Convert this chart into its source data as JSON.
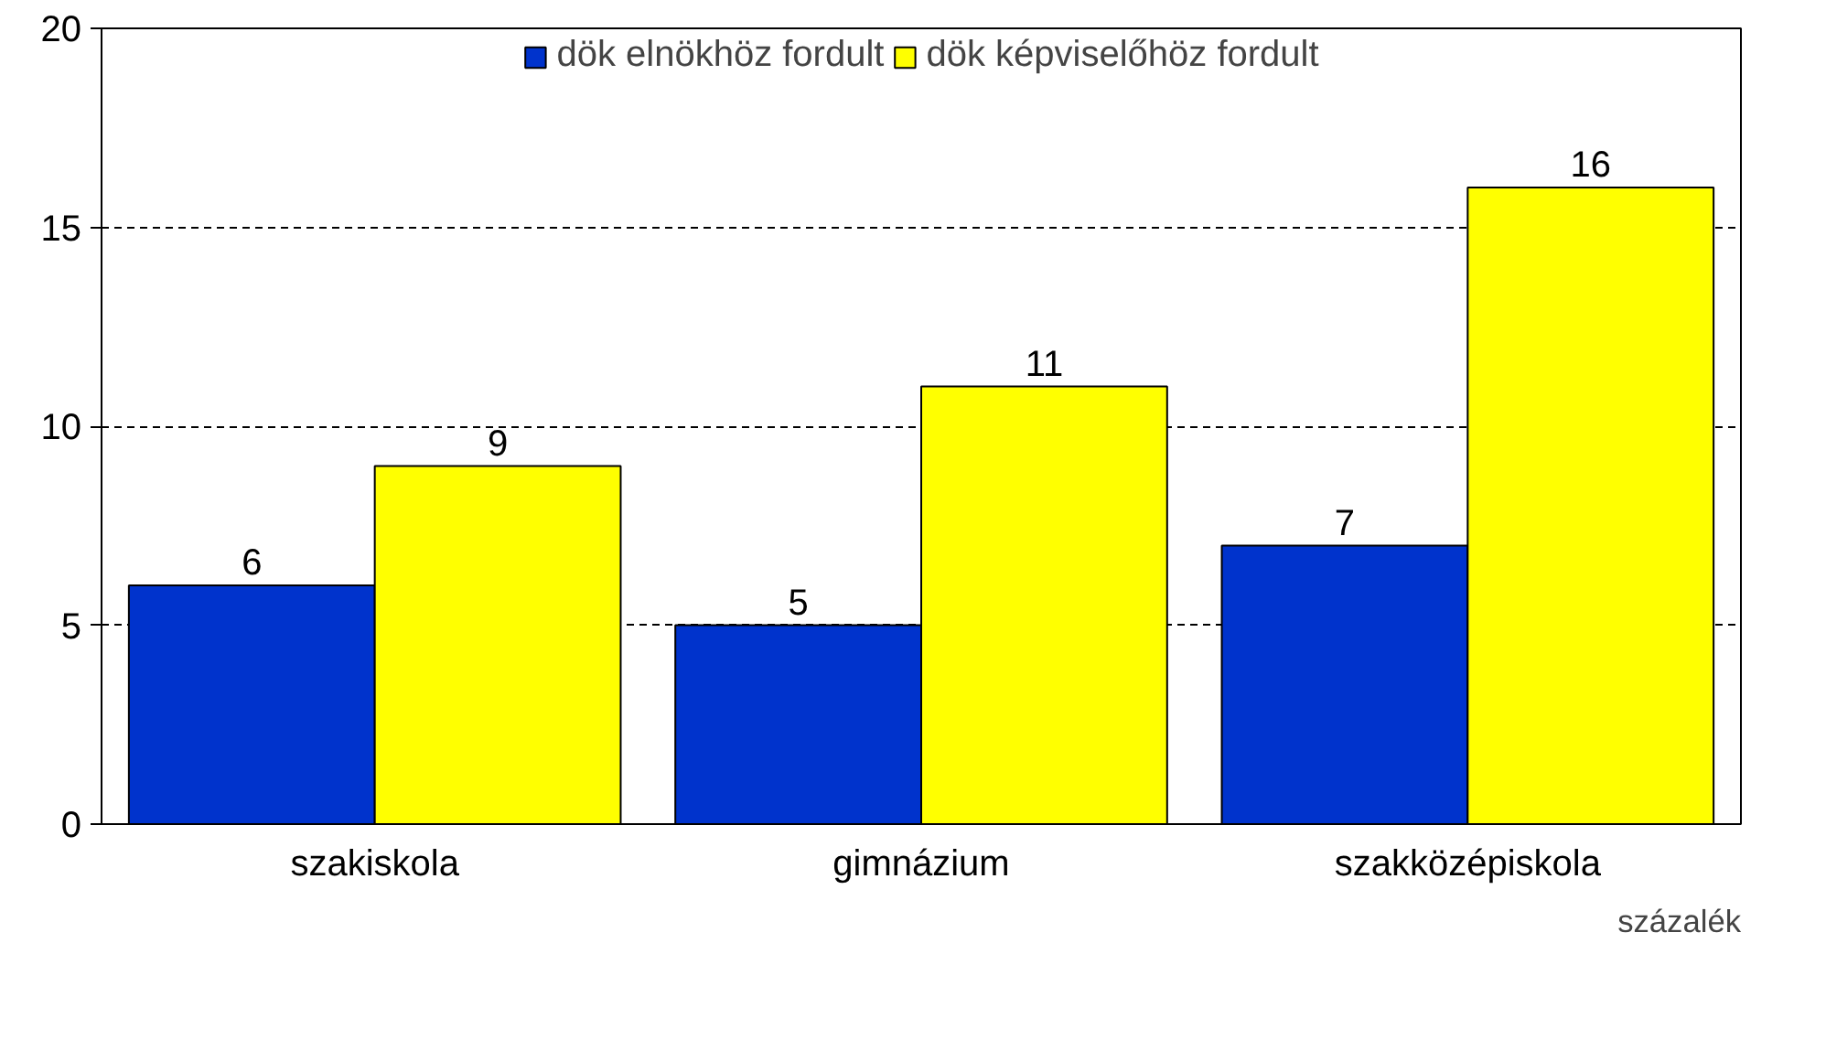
{
  "chart_data": {
    "type": "bar",
    "categories": [
      "szakiskola",
      "gimnázium",
      "szakközépiskola"
    ],
    "series": [
      {
        "name": "dök elnökhöz fordult",
        "color": "#0033cc",
        "values": [
          6,
          5,
          7
        ]
      },
      {
        "name": "dök képviselőhöz fordult",
        "color": "#ffff00",
        "values": [
          9,
          11,
          16
        ]
      }
    ],
    "ylim": [
      0,
      20
    ],
    "yticks": [
      0,
      5,
      10,
      15,
      20
    ],
    "grid": "y",
    "legend": "top",
    "data_labels": true,
    "annotations": [
      "százalék"
    ]
  }
}
